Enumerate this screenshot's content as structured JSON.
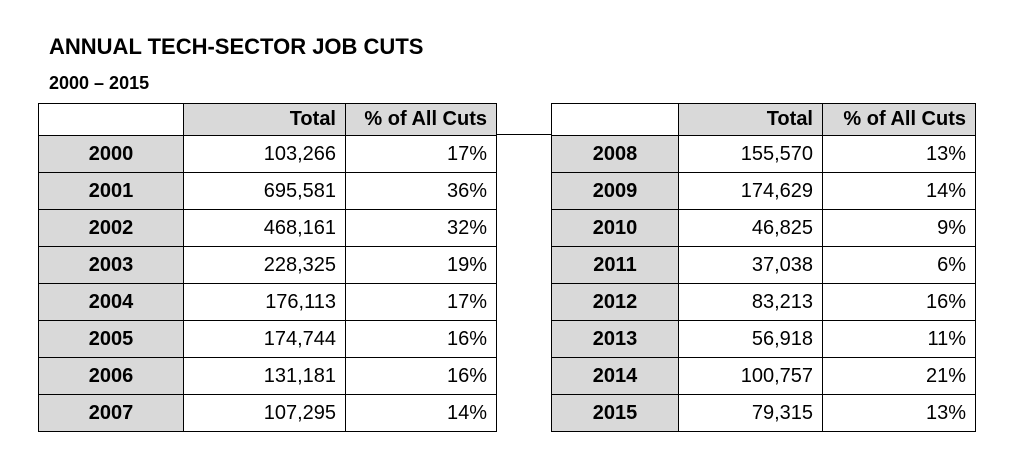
{
  "title": "ANNUAL TECH-SECTOR JOB CUTS",
  "subtitle": "2000 – 2015",
  "columns": {
    "total": "Total",
    "share": "% of All Cuts"
  },
  "left_rows": [
    {
      "year": "2000",
      "total": "103,266",
      "share": "17%"
    },
    {
      "year": "2001",
      "total": "695,581",
      "share": "36%"
    },
    {
      "year": "2002",
      "total": "468,161",
      "share": "32%"
    },
    {
      "year": "2003",
      "total": "228,325",
      "share": "19%"
    },
    {
      "year": "2004",
      "total": "176,113",
      "share": "17%"
    },
    {
      "year": "2005",
      "total": "174,744",
      "share": "16%"
    },
    {
      "year": "2006",
      "total": "131,181",
      "share": "16%"
    },
    {
      "year": "2007",
      "total": "107,295",
      "share": "14%"
    }
  ],
  "right_rows": [
    {
      "year": "2008",
      "total": "155,570",
      "share": "13%"
    },
    {
      "year": "2009",
      "total": "174,629",
      "share": "14%"
    },
    {
      "year": "2010",
      "total": "46,825",
      "share": "9%"
    },
    {
      "year": "2011",
      "total": "37,038",
      "share": "6%"
    },
    {
      "year": "2012",
      "total": "83,213",
      "share": "16%"
    },
    {
      "year": "2013",
      "total": "56,918",
      "share": "11%"
    },
    {
      "year": "2014",
      "total": "100,757",
      "share": "21%"
    },
    {
      "year": "2015",
      "total": "79,315",
      "share": "13%"
    }
  ],
  "colors": {
    "header_fill": "#d9d9d9",
    "border": "#000000",
    "text": "#000000"
  }
}
